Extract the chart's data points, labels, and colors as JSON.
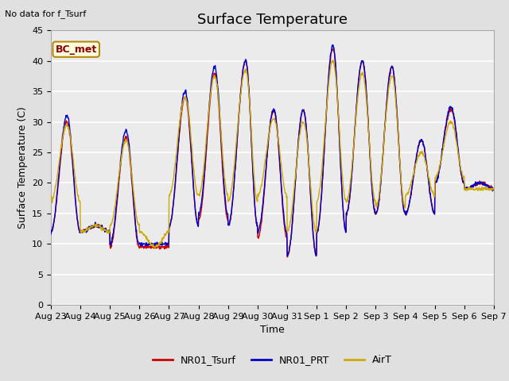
{
  "title": "Surface Temperature",
  "xlabel": "Time",
  "ylabel": "Surface Temperature (C)",
  "top_left_note": "No data for f_Tsurf",
  "bc_label": "BC_met",
  "legend_labels": [
    "NR01_Tsurf",
    "NR01_PRT",
    "AirT"
  ],
  "line_colors": [
    "#cc0000",
    "#0000cc",
    "#ccaa00"
  ],
  "ylim": [
    0,
    45
  ],
  "yticks": [
    0,
    5,
    10,
    15,
    20,
    25,
    30,
    35,
    40,
    45
  ],
  "background_color": "#e0e0e0",
  "plot_bg_color": "#ebebeb",
  "title_fontsize": 13,
  "label_fontsize": 9,
  "tick_fontsize": 8,
  "n_days": 15,
  "n_points_per_day": 96,
  "day_peaks_red": [
    30,
    13,
    27.5,
    9.5,
    34,
    38,
    40,
    32,
    32,
    42,
    40,
    39,
    27,
    32,
    20
  ],
  "day_mins_red": [
    12,
    12,
    9.5,
    9.5,
    13,
    14,
    13,
    11,
    8,
    12,
    15,
    15,
    15,
    20,
    19
  ],
  "day_peaks_blue": [
    31,
    13,
    28.5,
    10,
    35,
    39,
    40,
    32,
    32,
    42.5,
    40,
    39,
    27,
    32.5,
    20
  ],
  "day_mins_blue": [
    12,
    12,
    10,
    10,
    13,
    15,
    13,
    12,
    8,
    12,
    15,
    15,
    15,
    20,
    19
  ],
  "day_peaks_gold": [
    29.5,
    13,
    27,
    9.5,
    34,
    37.5,
    38.5,
    30.5,
    30,
    40,
    38,
    37.5,
    25,
    30,
    19
  ],
  "day_mins_gold": [
    17,
    12,
    13,
    12,
    18,
    18,
    17,
    18,
    12,
    17,
    17,
    16,
    18,
    21,
    19
  ],
  "peak_offsets": [
    0.55,
    0.55,
    0.55,
    0.55,
    0.55,
    0.55,
    0.6,
    0.55,
    0.55,
    0.55,
    0.55,
    0.55,
    0.55,
    0.55,
    0.55
  ],
  "x_tick_labels": [
    "Aug 23",
    "Aug 24",
    "Aug 25",
    "Aug 26",
    "Aug 27",
    "Aug 28",
    "Aug 29",
    "Aug 30",
    "Aug 31",
    "Sep 1",
    "Sep 2",
    "Sep 3",
    "Sep 4",
    "Sep 5",
    "Sep 6",
    "Sep 7"
  ]
}
